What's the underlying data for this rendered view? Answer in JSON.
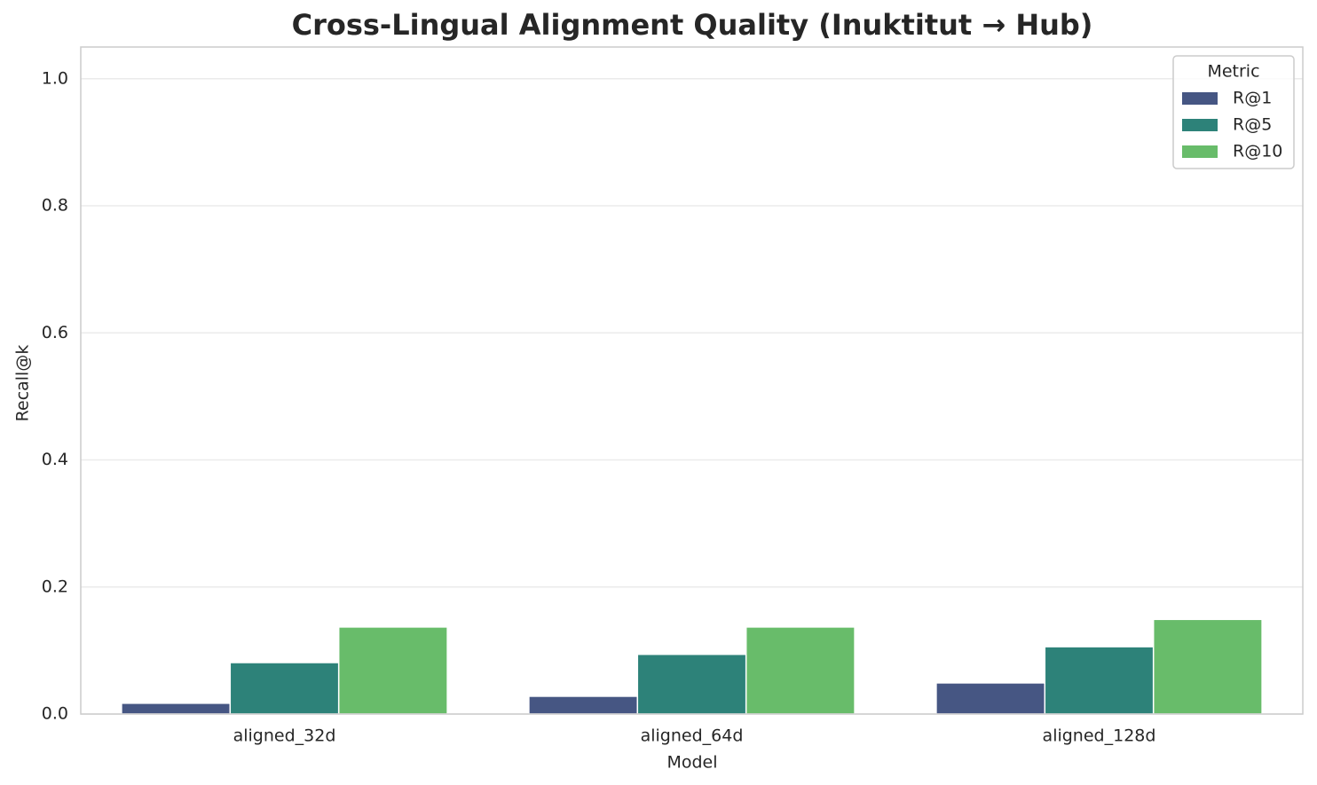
{
  "chart_data": {
    "type": "bar",
    "title": "Cross-Lingual Alignment Quality (Inuktitut → Hub)",
    "x_label": "Model",
    "y_label": "Recall@k",
    "categories": [
      "aligned_32d",
      "aligned_64d",
      "aligned_128d"
    ],
    "series": [
      {
        "name": "R@1",
        "color": "#465683",
        "values": [
          0.017,
          0.028,
          0.049
        ]
      },
      {
        "name": "R@5",
        "color": "#2d8279",
        "values": [
          0.081,
          0.094,
          0.106
        ]
      },
      {
        "name": "R@10",
        "color": "#68bc6a",
        "values": [
          0.137,
          0.137,
          0.149
        ]
      }
    ],
    "ylim": [
      0,
      1.05
    ],
    "yticks": [
      {
        "value": 0,
        "label": "0.0"
      },
      0.2,
      0.4,
      0.6,
      0.8,
      {
        "value": 1,
        "label": "1.0"
      }
    ],
    "grid": true,
    "legend_title": "Metric",
    "legend_position": "upper-right"
  }
}
